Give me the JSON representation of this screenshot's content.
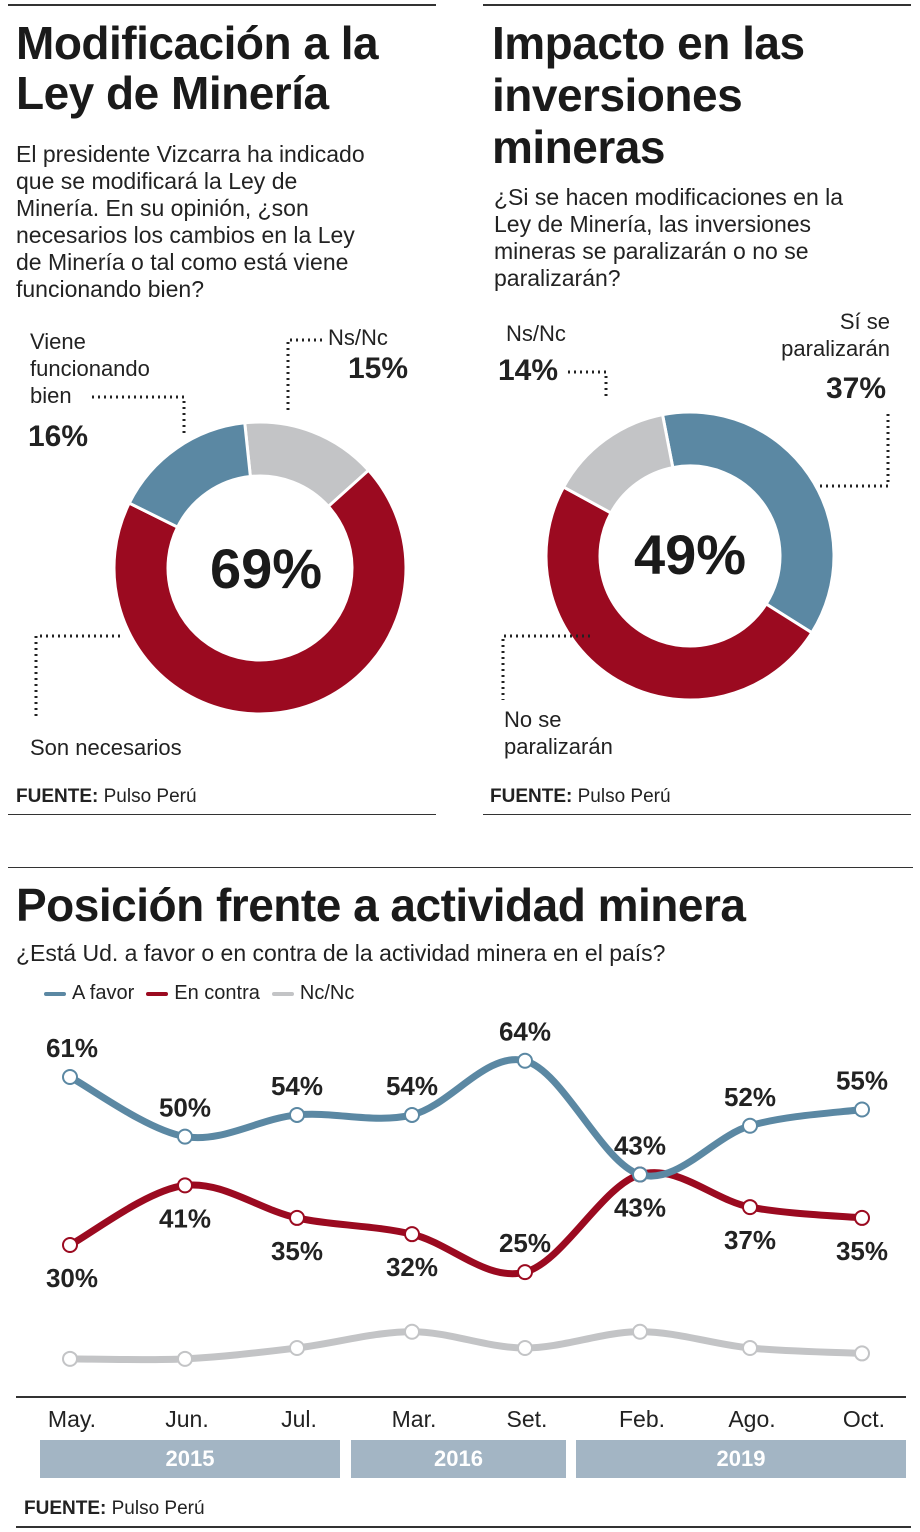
{
  "colors": {
    "a_favor": "#5b88a3",
    "en_contra": "#9b0a20",
    "nc": "#c3c4c6",
    "year_band": "#a3b5c4"
  },
  "chart_data": [
    {
      "type": "pie",
      "donut": true,
      "title": "Modificación a la Ley de Minería",
      "subtitle": "El presidente Vizcarra ha indicado que se modificará la Ley de Minería. En su opinión, ¿son necesarios los cambios en la Ley de Minería o tal como está viene funcionando bien?",
      "center_label": "69%",
      "slices": [
        {
          "label": "Ns/Nc",
          "value": 15,
          "display": "15%",
          "color": "#c3c4c6"
        },
        {
          "label": "Son necesarios",
          "value": 69,
          "display": "69%",
          "color": "#9b0a20"
        },
        {
          "label": "Viene funcionando bien",
          "value": 16,
          "display": "16%",
          "color": "#5b88a3"
        }
      ],
      "source_label": "FUENTE:",
      "source": "Pulso Perú"
    },
    {
      "type": "pie",
      "donut": true,
      "title": "Impacto en las inversiones mineras",
      "subtitle": "¿Si se hacen modificaciones en la Ley de Minería, las inversiones mineras se paralizarán o no se paralizarán?",
      "center_label": "49%",
      "slices": [
        {
          "label": "Sí se paralizarán",
          "value": 37,
          "display": "37%",
          "color": "#5b88a3"
        },
        {
          "label": "No se paralizarán",
          "value": 49,
          "display": "49%",
          "color": "#9b0a20"
        },
        {
          "label": "Ns/Nc",
          "value": 14,
          "display": "14%",
          "color": "#c3c4c6"
        }
      ],
      "source_label": "FUENTE:",
      "source": "Pulso Perú"
    },
    {
      "type": "line",
      "title": "Posición frente a actividad minera",
      "subtitle": "¿Está Ud. a favor o en contra de la actividad minera en el país?",
      "categories": [
        "May.",
        "Jun.",
        "Jul.",
        "Mar.",
        "Set.",
        "Feb.",
        "Ago.",
        "Oct."
      ],
      "years": [
        {
          "label": "2015",
          "span": 3
        },
        {
          "label": "2016",
          "span": 2
        },
        {
          "label": "2019",
          "span": 3
        }
      ],
      "legend_position": "top-left",
      "series": [
        {
          "name": "A favor",
          "color": "#5b88a3",
          "values": [
            61,
            50,
            54,
            54,
            64,
            43,
            52,
            55
          ],
          "labeled": true
        },
        {
          "name": "En contra",
          "color": "#9b0a20",
          "values": [
            30,
            41,
            35,
            32,
            25,
            43,
            37,
            35
          ],
          "labeled": true
        },
        {
          "name": "Nc/Nc",
          "color": "#c3c4c6",
          "values": [
            9,
            9,
            11,
            14,
            11,
            14,
            11,
            10
          ],
          "labeled": false
        }
      ],
      "source_label": "FUENTE:",
      "source": "Pulso Perú"
    }
  ],
  "donut1": {
    "title_l1": "Modificación a la",
    "title_l2": "Ley de Minería",
    "q_lines": [
      "El presidente Vizcarra ha indicado",
      "que se modificará la Ley de",
      "Minería. En su opinión, ¿son",
      "necesarios los cambios en la Ley",
      "de Minería o tal como está viene",
      "funcionando bien?"
    ],
    "l_viene": [
      "Viene",
      "funcionando",
      "bien"
    ],
    "p_viene": "16%",
    "l_ns": "Ns/Nc",
    "p_ns": "15%",
    "l_son": "Son necesarios",
    "center": "69%"
  },
  "donut2": {
    "title_l1": "Impacto en las",
    "title_l2": "inversiones",
    "title_l3": "mineras",
    "q_lines": [
      "¿Si se hacen modificaciones en la",
      "Ley de Minería, las inversiones",
      "mineras se paralizarán o no se",
      "paralizarán?"
    ],
    "l_ns": "Ns/Nc",
    "p_ns": "14%",
    "l_si": [
      "Sí se",
      "paralizarán"
    ],
    "p_si": "37%",
    "l_no": [
      "No se",
      "paralizarán"
    ],
    "center": "49%"
  }
}
